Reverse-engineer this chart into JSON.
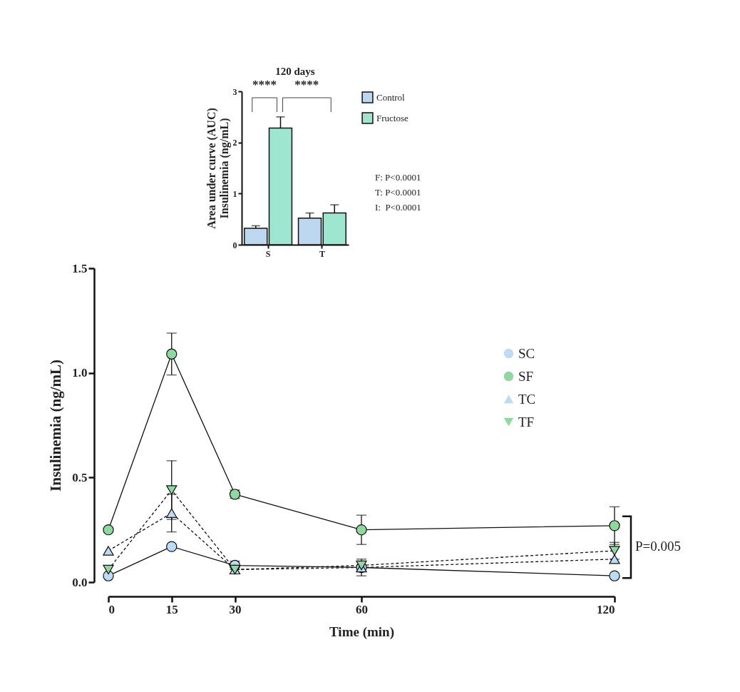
{
  "chart_data": [
    {
      "type": "bar",
      "title": "120 days",
      "ylabel": "Area under curve (AUC)\nInsulinemia (ng/mL)",
      "categories": [
        "S",
        "T"
      ],
      "series": [
        {
          "name": "Control",
          "color": "#bdd7f0",
          "values": [
            0.32,
            0.52
          ],
          "errors": [
            [
              0.32,
              0.37
            ],
            [
              0.52,
              0.62
            ]
          ]
        },
        {
          "name": "Fructose",
          "color": "#9ee6d0",
          "values": [
            2.28,
            0.62
          ],
          "errors": [
            [
              2.28,
              2.5
            ],
            [
              0.62,
              0.78
            ]
          ]
        }
      ],
      "ylim": [
        0,
        3
      ],
      "yticks": [
        0,
        1,
        2,
        3
      ],
      "legend": "right",
      "grid": false,
      "annotations": [
        "****",
        "****",
        "F: P<0.0001",
        "T: P<0.0001",
        "I:  P<0.0001"
      ]
    },
    {
      "type": "line",
      "xlabel": "Time (min)",
      "ylabel": "Insulinemia (ng/mL)",
      "x": [
        0,
        15,
        30,
        60,
        120
      ],
      "series": [
        {
          "name": "SC",
          "color": "#bcdcf4",
          "marker": "circle",
          "line_style": "solid",
          "values": [
            0.03,
            0.17,
            0.08,
            0.07,
            0.03
          ],
          "errors": [
            null,
            null,
            0.02,
            0.04,
            null
          ]
        },
        {
          "name": "SF",
          "color": "#8fd89e",
          "marker": "circle",
          "line_style": "solid",
          "values": [
            0.25,
            1.09,
            0.42,
            0.25,
            0.27
          ],
          "errors": [
            null,
            0.1,
            0.02,
            0.07,
            0.09
          ]
        },
        {
          "name": "TC",
          "color": "#bcdcf4",
          "marker": "triangle",
          "line_style": "dashed",
          "values": [
            0.15,
            0.33,
            0.06,
            0.07,
            0.11
          ],
          "errors": [
            null,
            0.09,
            null,
            null,
            null
          ]
        },
        {
          "name": "TF",
          "color": "#8fd89e",
          "marker": "triangle-down",
          "line_style": "dashed",
          "values": [
            0.06,
            0.44,
            0.06,
            0.08,
            0.15
          ],
          "errors": [
            null,
            0.14,
            null,
            null,
            0.04
          ]
        }
      ],
      "xlim": [
        0,
        120
      ],
      "xticks": [
        0,
        15,
        30,
        60,
        120
      ],
      "ylim": [
        0,
        1.5
      ],
      "yticks": [
        {
          "value": 0,
          "label": "0.0"
        },
        0.5,
        {
          "value": 1,
          "label": "1.0"
        },
        1.5
      ],
      "legend": "top right",
      "grid": false,
      "annotations": [
        "P=0.005"
      ]
    }
  ]
}
